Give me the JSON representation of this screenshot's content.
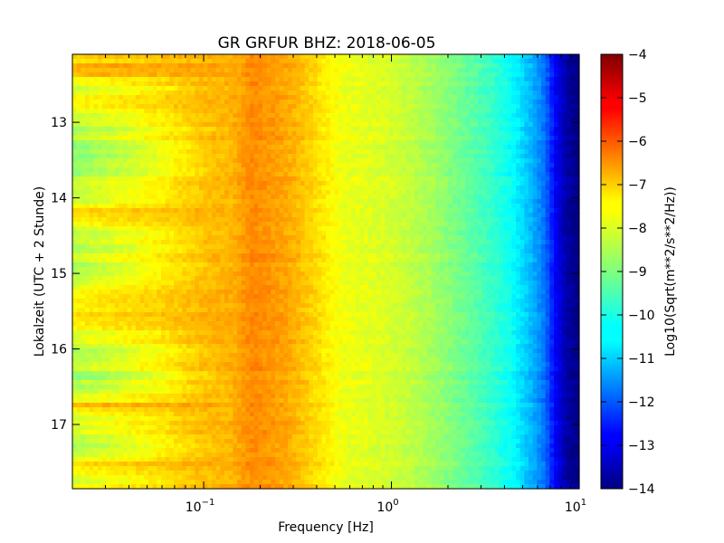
{
  "chart_data": {
    "type": "heatmap",
    "title": "GR GRFUR BHZ: 2018-06-05",
    "xlabel": "Frequency [Hz]",
    "ylabel": "Lokalzeit (UTC + 2 Stunde)",
    "x_scale": "log",
    "xlim": [
      0.02,
      10
    ],
    "x_ticks": [
      {
        "value": 0.1,
        "base": "10",
        "exp": "−1"
      },
      {
        "value": 1,
        "base": "10",
        "exp": "0"
      },
      {
        "value": 10,
        "base": "10",
        "exp": "1"
      }
    ],
    "ylim": [
      12.1,
      17.85
    ],
    "y_inverted": true,
    "y_ticks": [
      13,
      14,
      15,
      16,
      17
    ],
    "colorbar": {
      "label": "Log10(Sqrt(m**2/s**2/Hz))",
      "colormap": "jet",
      "range": [
        -14,
        -4
      ],
      "ticks": [
        -4,
        -5,
        -6,
        -7,
        -8,
        -9,
        -10,
        -11,
        -12,
        -13,
        -14
      ]
    },
    "frequency_bins": [
      0.02,
      0.04,
      0.06,
      0.08,
      0.1,
      0.14,
      0.18,
      0.22,
      0.28,
      0.35,
      0.45,
      0.55,
      0.7,
      0.9,
      1.2,
      1.6,
      2.0,
      2.6,
      3.4,
      4.4,
      5.5,
      6.5,
      7.5,
      8.5,
      10
    ],
    "profile_values": [
      -8.5,
      -8.0,
      -7.7,
      -7.4,
      -7.2,
      -7.0,
      -6.6,
      -6.7,
      -6.9,
      -7.2,
      -7.6,
      -7.9,
      -8.0,
      -8.1,
      -8.3,
      -8.6,
      -8.9,
      -9.3,
      -9.7,
      -10.2,
      -10.9,
      -11.6,
      -12.8,
      -13.6,
      -14.0
    ],
    "time_rows": [
      {
        "t": 12.1,
        "low_freq_offset": 1.2
      },
      {
        "t": 12.35,
        "low_freq_offset": 1.4
      },
      {
        "t": 12.5,
        "low_freq_offset": 0.4
      },
      {
        "t": 12.75,
        "low_freq_offset": 0.8
      },
      {
        "t": 13.0,
        "low_freq_offset": 0.0
      },
      {
        "t": 13.5,
        "low_freq_offset": -0.3
      },
      {
        "t": 14.0,
        "low_freq_offset": 0.2
      },
      {
        "t": 14.2,
        "low_freq_offset": 1.3
      },
      {
        "t": 14.5,
        "low_freq_offset": 0.1
      },
      {
        "t": 15.0,
        "low_freq_offset": 0.0
      },
      {
        "t": 15.45,
        "low_freq_offset": 0.9
      },
      {
        "t": 15.6,
        "low_freq_offset": 0.7
      },
      {
        "t": 16.0,
        "low_freq_offset": 0.0
      },
      {
        "t": 16.5,
        "low_freq_offset": -0.2
      },
      {
        "t": 16.75,
        "low_freq_offset": 1.2
      },
      {
        "t": 17.0,
        "low_freq_offset": 0.2
      },
      {
        "t": 17.3,
        "low_freq_offset": 0.1
      },
      {
        "t": 17.6,
        "low_freq_offset": 1.0
      },
      {
        "t": 17.85,
        "low_freq_offset": 0.3
      }
    ]
  }
}
